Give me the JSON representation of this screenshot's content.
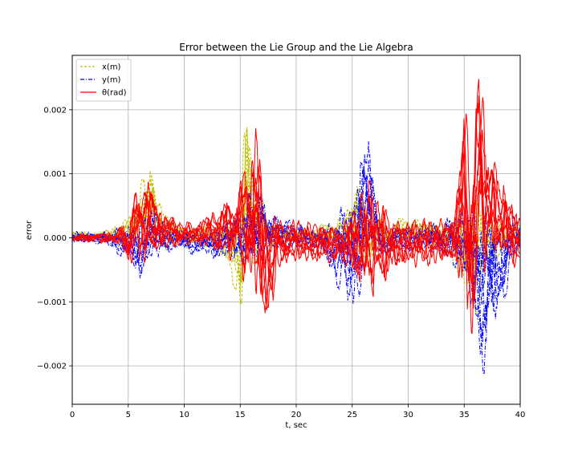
{
  "chart_data": {
    "type": "line",
    "title": "Error between the Lie Group and the Lie Algebra",
    "xlabel": "t, sec",
    "ylabel": "error",
    "xlim": [
      0,
      40
    ],
    "ylim": [
      -0.0026,
      0.00285
    ],
    "x_ticks": [
      0,
      5,
      10,
      15,
      20,
      25,
      30,
      35,
      40
    ],
    "y_ticks": [
      -0.002,
      -0.001,
      0.0,
      0.001,
      0.002
    ],
    "y_tick_labels": [
      "−0.002",
      "−0.001",
      "0.000",
      "0.001",
      "0.002"
    ],
    "grid": true,
    "legend_position": "top-left",
    "series": [
      {
        "name": "x(m)",
        "legend_label": "x(m)",
        "color": "#bfbf00",
        "style": "dashed",
        "envelope": [
          {
            "t": 0,
            "min": -5e-05,
            "max": 0.0001
          },
          {
            "t": 2.5,
            "min": -8e-05,
            "max": 0.0001
          },
          {
            "t": 5,
            "min": -0.0002,
            "max": 0.0003
          },
          {
            "t": 6.2,
            "min": -0.0003,
            "max": 0.0009
          },
          {
            "t": 7,
            "min": -0.0002,
            "max": 0.0011
          },
          {
            "t": 8,
            "min": -0.0002,
            "max": 0.0005
          },
          {
            "t": 10,
            "min": -0.00015,
            "max": 0.00015
          },
          {
            "t": 13,
            "min": -0.0002,
            "max": 0.0002
          },
          {
            "t": 14.8,
            "min": -0.0009,
            "max": 0.0003
          },
          {
            "t": 15.0,
            "min": -0.0018,
            "max": 0.0006
          },
          {
            "t": 15.5,
            "min": -0.0006,
            "max": 0.0021
          },
          {
            "t": 16.2,
            "min": -0.0004,
            "max": 0.0011
          },
          {
            "t": 17.5,
            "min": -0.0002,
            "max": 0.0003
          },
          {
            "t": 20,
            "min": -0.0001,
            "max": 0.0001
          },
          {
            "t": 24,
            "min": -0.0002,
            "max": 0.0003
          },
          {
            "t": 25.5,
            "min": -0.0006,
            "max": 0.0009
          },
          {
            "t": 27,
            "min": -0.0003,
            "max": 0.0003
          },
          {
            "t": 30,
            "min": -0.0001,
            "max": 0.0003
          },
          {
            "t": 34,
            "min": -0.0002,
            "max": 0.0002
          },
          {
            "t": 35.2,
            "min": -0.0012,
            "max": 0.0005
          },
          {
            "t": 36,
            "min": -0.0012,
            "max": 0.0006
          },
          {
            "t": 38,
            "min": -0.0003,
            "max": 0.0003
          },
          {
            "t": 40,
            "min": -0.0001,
            "max": 0.0002
          }
        ]
      },
      {
        "name": "y(m)",
        "legend_label": "y(m)",
        "color": "#0000ff",
        "style": "dashdot",
        "envelope": [
          {
            "t": 0,
            "min": -8e-05,
            "max": 0.0001
          },
          {
            "t": 3,
            "min": -0.0001,
            "max": 0.0001
          },
          {
            "t": 5,
            "min": -0.0004,
            "max": 0.0002
          },
          {
            "t": 6,
            "min": -0.0007,
            "max": 0.0003
          },
          {
            "t": 7,
            "min": -0.0004,
            "max": 0.0005
          },
          {
            "t": 9,
            "min": -0.0002,
            "max": 0.0002
          },
          {
            "t": 12,
            "min": -0.0003,
            "max": 0.0001
          },
          {
            "t": 14.5,
            "min": -0.0004,
            "max": 0.0004
          },
          {
            "t": 16.5,
            "min": -0.0006,
            "max": 0.0009
          },
          {
            "t": 18,
            "min": -0.0002,
            "max": 0.0004
          },
          {
            "t": 22,
            "min": -0.0002,
            "max": 0.0001
          },
          {
            "t": 25.1,
            "min": -0.0013,
            "max": 0.0007
          },
          {
            "t": 26.2,
            "min": -0.0005,
            "max": 0.002
          },
          {
            "t": 27.5,
            "min": -0.0003,
            "max": 0.0002
          },
          {
            "t": 32,
            "min": -0.0002,
            "max": 0.0002
          },
          {
            "t": 35,
            "min": -0.0006,
            "max": 0.0005
          },
          {
            "t": 36.8,
            "min": -0.0023,
            "max": 0.0007
          },
          {
            "t": 38,
            "min": -0.0013,
            "max": 0.0004
          },
          {
            "t": 40,
            "min": -0.0002,
            "max": 0.0003
          }
        ]
      },
      {
        "name": "θ(rad)",
        "legend_label": "θ(rad)",
        "color": "#ff0000",
        "style": "solid",
        "envelope": [
          {
            "t": 0,
            "min": -5e-05,
            "max": 5e-05
          },
          {
            "t": 4,
            "min": -0.0001,
            "max": 0.0001
          },
          {
            "t": 5,
            "min": -0.0004,
            "max": 0.0004
          },
          {
            "t": 6.5,
            "min": -0.0004,
            "max": 0.0011
          },
          {
            "t": 8,
            "min": -0.0002,
            "max": 0.0004
          },
          {
            "t": 11,
            "min": -0.0001,
            "max": 0.0002
          },
          {
            "t": 14.8,
            "min": -0.0004,
            "max": 0.0008
          },
          {
            "t": 16,
            "min": -0.0011,
            "max": 0.0014
          },
          {
            "t": 16.5,
            "min": -0.0009,
            "max": 0.0019
          },
          {
            "t": 17,
            "min": -0.0015,
            "max": 0.0006
          },
          {
            "t": 19,
            "min": -0.0004,
            "max": 0.0003
          },
          {
            "t": 24,
            "min": -0.0004,
            "max": 0.0002
          },
          {
            "t": 26.5,
            "min": -0.001,
            "max": 0.0009
          },
          {
            "t": 29,
            "min": -0.0005,
            "max": 0.0003
          },
          {
            "t": 34,
            "min": -0.0004,
            "max": 0.0003
          },
          {
            "t": 35.0,
            "min": -0.001,
            "max": 0.0022
          },
          {
            "t": 35.4,
            "min": -0.0018,
            "max": 0.0016
          },
          {
            "t": 36.3,
            "min": -0.0009,
            "max": 0.0026
          },
          {
            "t": 37.5,
            "min": -0.0003,
            "max": 0.0013
          },
          {
            "t": 40,
            "min": -0.0005,
            "max": 0.0003
          }
        ]
      }
    ]
  }
}
